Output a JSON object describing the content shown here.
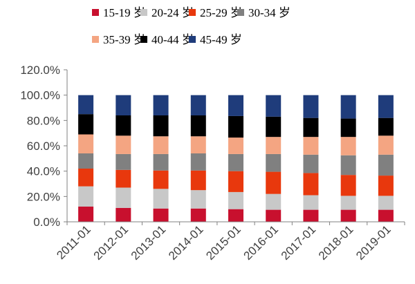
{
  "chart_data": {
    "type": "bar",
    "stacked": true,
    "categories": [
      "2011-01",
      "2012-01",
      "2013-01",
      "2014-01",
      "2015-01",
      "2016-01",
      "2017-01",
      "2018-01",
      "2019-01"
    ],
    "series": [
      {
        "name": "15-19 岁",
        "color": "#C8102E",
        "values": [
          12,
          11,
          10.5,
          10.5,
          10,
          9.5,
          9.5,
          9.5,
          9.5
        ]
      },
      {
        "name": "20-24 岁",
        "color": "#C8C8C8",
        "values": [
          16,
          16,
          15.5,
          14.5,
          13.5,
          12.5,
          11.5,
          11,
          11
        ]
      },
      {
        "name": "25-29 岁",
        "color": "#E8380D",
        "values": [
          14,
          14,
          14.5,
          15.5,
          16.5,
          17.5,
          17.5,
          16.5,
          16
        ]
      },
      {
        "name": "30-34 岁",
        "color": "#808080",
        "values": [
          12,
          12.5,
          13,
          13.5,
          13.5,
          14,
          14.5,
          15.5,
          16.5
        ]
      },
      {
        "name": "35-39 岁",
        "color": "#F4A582",
        "values": [
          15,
          14.5,
          14,
          13.5,
          13,
          13.5,
          14,
          14.5,
          15
        ]
      },
      {
        "name": "40-44 岁",
        "color": "#000000",
        "values": [
          16,
          16,
          16.5,
          16.5,
          17,
          16,
          15,
          14.5,
          14
        ]
      },
      {
        "name": "45-49 岁",
        "color": "#1F3C7B",
        "values": [
          15,
          16,
          16,
          16,
          16.5,
          17,
          18,
          18.5,
          18
        ]
      }
    ],
    "yticks": [
      "0.0%",
      "20.0%",
      "40.0%",
      "60.0%",
      "80.0%",
      "100.0%",
      "120.0%"
    ],
    "ylim": [
      0,
      120
    ],
    "grid": false,
    "legend_position": "top"
  }
}
